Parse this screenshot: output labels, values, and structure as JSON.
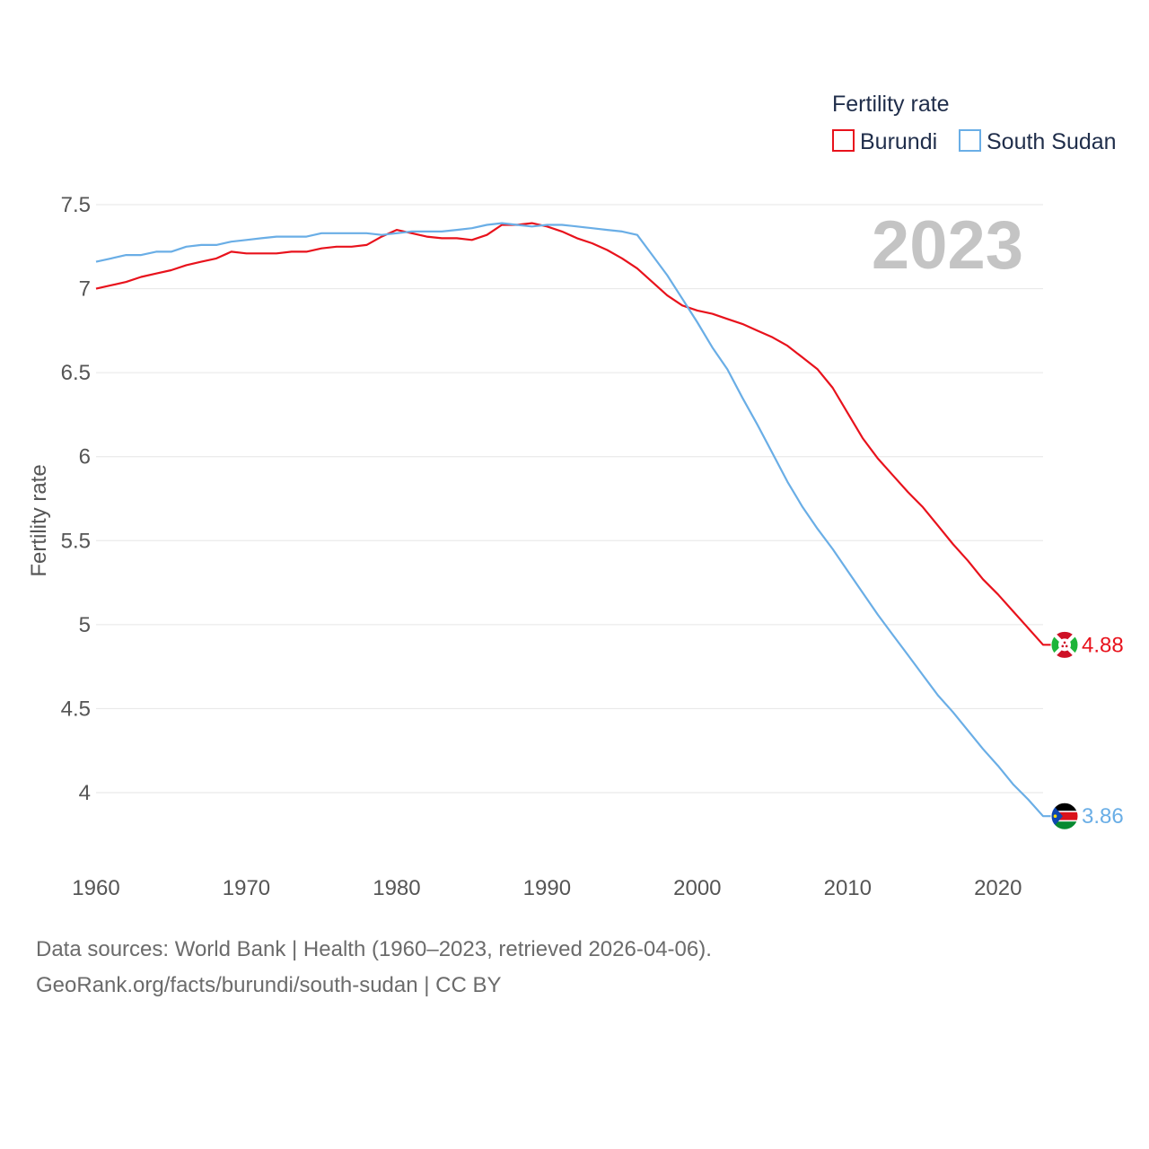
{
  "chart_data": {
    "type": "line",
    "title": "",
    "legend_title": "Fertility rate",
    "legend_position": "top-right",
    "current_year_label": "2023",
    "xlabel": "",
    "ylabel": "Fertility rate",
    "xlim": [
      1960,
      2023
    ],
    "ylim": [
      3.6,
      7.6
    ],
    "x_ticks": [
      1960,
      1970,
      1980,
      1990,
      2000,
      2010,
      2020
    ],
    "x_tick_labels": [
      "1960",
      "1970",
      "1980",
      "1990",
      "2000",
      "2010",
      "2020"
    ],
    "y_ticks": [
      4,
      4.5,
      5,
      5.5,
      6,
      6.5,
      7,
      7.5
    ],
    "y_tick_labels": [
      "4",
      "4.5",
      "5",
      "5.5",
      "6",
      "6.5",
      "7",
      "7.5"
    ],
    "grid": true,
    "x": [
      1960,
      1961,
      1962,
      1963,
      1964,
      1965,
      1966,
      1967,
      1968,
      1969,
      1970,
      1971,
      1972,
      1973,
      1974,
      1975,
      1976,
      1977,
      1978,
      1979,
      1980,
      1981,
      1982,
      1983,
      1984,
      1985,
      1986,
      1987,
      1988,
      1989,
      1990,
      1991,
      1992,
      1993,
      1994,
      1995,
      1996,
      1997,
      1998,
      1999,
      2000,
      2001,
      2002,
      2003,
      2004,
      2005,
      2006,
      2007,
      2008,
      2009,
      2010,
      2011,
      2012,
      2013,
      2014,
      2015,
      2016,
      2017,
      2018,
      2019,
      2020,
      2021,
      2022,
      2023
    ],
    "series": [
      {
        "name": "Burundi",
        "color": "#e8121c",
        "end_label": "4.88",
        "flag": "burundi-flag",
        "values": [
          7.0,
          7.02,
          7.04,
          7.07,
          7.09,
          7.11,
          7.14,
          7.16,
          7.18,
          7.22,
          7.21,
          7.21,
          7.21,
          7.22,
          7.22,
          7.24,
          7.25,
          7.25,
          7.26,
          7.31,
          7.35,
          7.33,
          7.31,
          7.3,
          7.3,
          7.29,
          7.32,
          7.38,
          7.38,
          7.39,
          7.37,
          7.34,
          7.3,
          7.27,
          7.23,
          7.18,
          7.12,
          7.04,
          6.96,
          6.9,
          6.87,
          6.85,
          6.82,
          6.79,
          6.75,
          6.71,
          6.66,
          6.59,
          6.52,
          6.41,
          6.26,
          6.11,
          5.99,
          5.89,
          5.79,
          5.7,
          5.59,
          5.48,
          5.38,
          5.27,
          5.18,
          5.08,
          4.98,
          4.88
        ]
      },
      {
        "name": "South Sudan",
        "color": "#6aaee6",
        "end_label": "3.86",
        "flag": "south-sudan-flag",
        "values": [
          7.16,
          7.18,
          7.2,
          7.2,
          7.22,
          7.22,
          7.25,
          7.26,
          7.26,
          7.28,
          7.29,
          7.3,
          7.31,
          7.31,
          7.31,
          7.33,
          7.33,
          7.33,
          7.33,
          7.32,
          7.33,
          7.34,
          7.34,
          7.34,
          7.35,
          7.36,
          7.38,
          7.39,
          7.38,
          7.37,
          7.38,
          7.38,
          7.37,
          7.36,
          7.35,
          7.34,
          7.32,
          7.2,
          7.08,
          6.94,
          6.8,
          6.65,
          6.52,
          6.35,
          6.19,
          6.02,
          5.85,
          5.7,
          5.57,
          5.45,
          5.32,
          5.19,
          5.06,
          4.94,
          4.82,
          4.7,
          4.58,
          4.48,
          4.37,
          4.26,
          4.16,
          4.05,
          3.96,
          3.86
        ]
      }
    ]
  },
  "footer": {
    "sources": "Data sources: World Bank | Health (1960–2023, retrieved 2026-04-06).",
    "link": "GeoRank.org/facts/burundi/south-sudan | CC BY"
  }
}
